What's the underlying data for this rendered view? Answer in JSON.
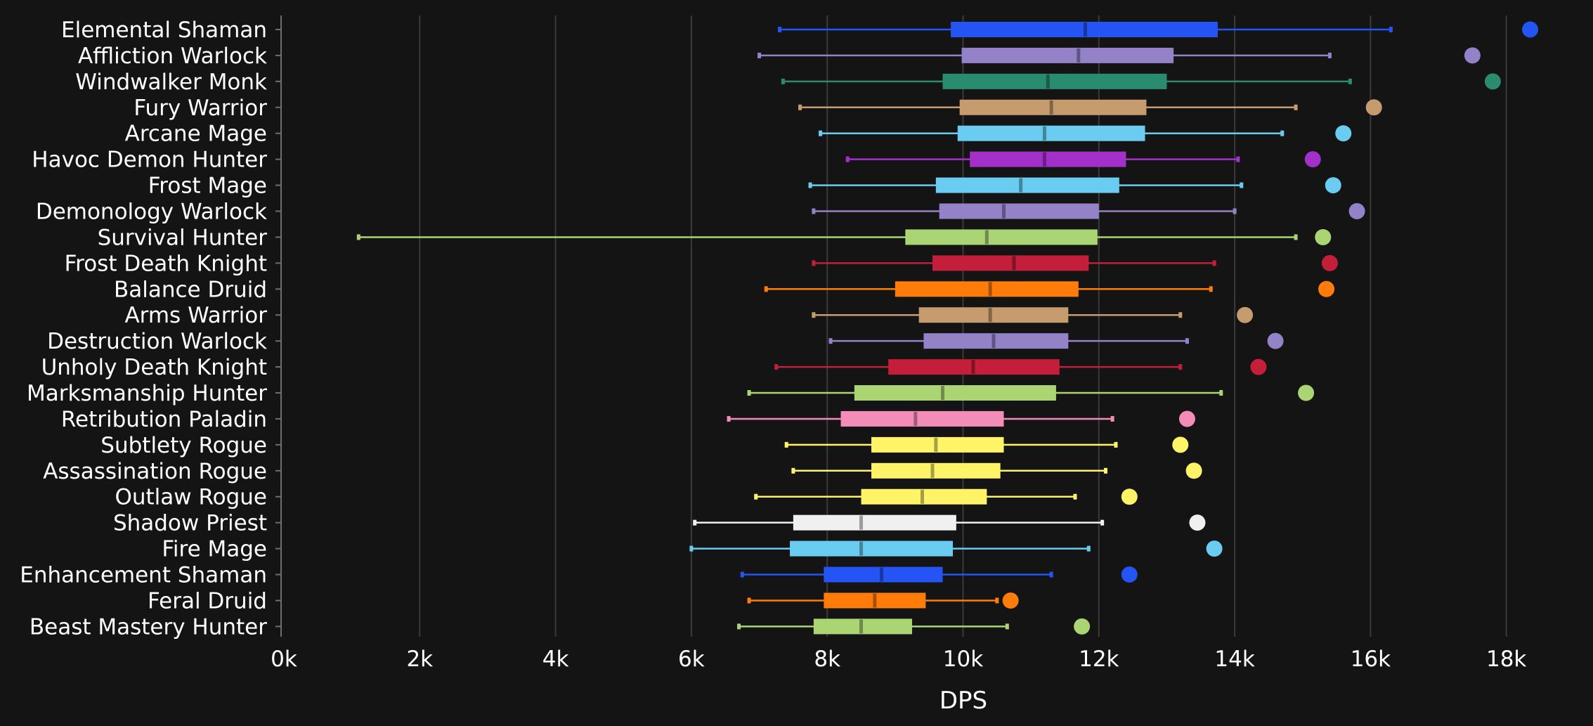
{
  "chart_data": {
    "type": "boxplot",
    "title": "",
    "xlabel": "DPS",
    "ylabel": "",
    "xlim": [
      0,
      18500
    ],
    "x_ticks": [
      0,
      2000,
      4000,
      6000,
      8000,
      10000,
      12000,
      14000,
      16000,
      18000
    ],
    "x_tick_labels": [
      "0k",
      "2k",
      "4k",
      "6k",
      "8k",
      "10k",
      "12k",
      "14k",
      "16k",
      "18k"
    ],
    "grid": "vertical",
    "series": [
      {
        "name": "Elemental Shaman",
        "color": "#2554f5",
        "min": 7300,
        "q1": 9820,
        "median": 11800,
        "q3": 13750,
        "max": 16300,
        "max_point": 18350
      },
      {
        "name": "Affliction Warlock",
        "color": "#9482c9",
        "min": 7000,
        "q1": 9980,
        "median": 11700,
        "q3": 13100,
        "max": 15400,
        "max_point": 17500
      },
      {
        "name": "Windwalker Monk",
        "color": "#2a8c6e",
        "min": 7350,
        "q1": 9700,
        "median": 11250,
        "q3": 13000,
        "max": 15700,
        "max_point": 17800
      },
      {
        "name": "Fury Warrior",
        "color": "#c69b6d",
        "min": 7600,
        "q1": 9950,
        "median": 11300,
        "q3": 12700,
        "max": 14900,
        "max_point": 16050
      },
      {
        "name": "Arcane Mage",
        "color": "#69ccf0",
        "min": 7900,
        "q1": 9920,
        "median": 11200,
        "q3": 12680,
        "max": 14700,
        "max_point": 15600
      },
      {
        "name": "Havoc Demon Hunter",
        "color": "#a330c9",
        "min": 8300,
        "q1": 10100,
        "median": 11200,
        "q3": 12400,
        "max": 14050,
        "max_point": 15150
      },
      {
        "name": "Frost Mage",
        "color": "#69ccf0",
        "min": 7750,
        "q1": 9600,
        "median": 10850,
        "q3": 12300,
        "max": 14100,
        "max_point": 15450
      },
      {
        "name": "Demonology Warlock",
        "color": "#9482c9",
        "min": 7800,
        "q1": 9650,
        "median": 10600,
        "q3": 12000,
        "max": 14000,
        "max_point": 15800
      },
      {
        "name": "Survival Hunter",
        "color": "#abd473",
        "min": 1100,
        "q1": 9150,
        "median": 10350,
        "q3": 11980,
        "max": 14900,
        "max_point": 15300
      },
      {
        "name": "Frost Death Knight",
        "color": "#c41e3a",
        "min": 7800,
        "q1": 9550,
        "median": 10750,
        "q3": 11850,
        "max": 13700,
        "max_point": 15400
      },
      {
        "name": "Balance Druid",
        "color": "#ff7c0a",
        "min": 7100,
        "q1": 9000,
        "median": 10400,
        "q3": 11700,
        "max": 13650,
        "max_point": 15350
      },
      {
        "name": "Arms Warrior",
        "color": "#c69b6d",
        "min": 7800,
        "q1": 9350,
        "median": 10400,
        "q3": 11550,
        "max": 13200,
        "max_point": 14150
      },
      {
        "name": "Destruction Warlock",
        "color": "#9482c9",
        "min": 8050,
        "q1": 9420,
        "median": 10450,
        "q3": 11550,
        "max": 13300,
        "max_point": 14600
      },
      {
        "name": "Unholy Death Knight",
        "color": "#c41e3a",
        "min": 7250,
        "q1": 8900,
        "median": 10150,
        "q3": 11420,
        "max": 13200,
        "max_point": 14350
      },
      {
        "name": "Marksmanship Hunter",
        "color": "#abd473",
        "min": 6850,
        "q1": 8400,
        "median": 9700,
        "q3": 11370,
        "max": 13800,
        "max_point": 15050
      },
      {
        "name": "Retribution Paladin",
        "color": "#f48cba",
        "min": 6550,
        "q1": 8200,
        "median": 9300,
        "q3": 10600,
        "max": 12200,
        "max_point": 13300
      },
      {
        "name": "Subtlety Rogue",
        "color": "#fff468",
        "min": 7400,
        "q1": 8650,
        "median": 9600,
        "q3": 10600,
        "max": 12250,
        "max_point": 13200
      },
      {
        "name": "Assassination Rogue",
        "color": "#fff468",
        "min": 7500,
        "q1": 8650,
        "median": 9550,
        "q3": 10550,
        "max": 12100,
        "max_point": 13400
      },
      {
        "name": "Outlaw Rogue",
        "color": "#fff468",
        "min": 6950,
        "q1": 8500,
        "median": 9400,
        "q3": 10350,
        "max": 11650,
        "max_point": 12450
      },
      {
        "name": "Shadow Priest",
        "color": "#f0f0f0",
        "min": 6050,
        "q1": 7500,
        "median": 8500,
        "q3": 9900,
        "max": 12050,
        "max_point": 13450
      },
      {
        "name": "Fire Mage",
        "color": "#69ccf0",
        "min": 6000,
        "q1": 7450,
        "median": 8500,
        "q3": 9850,
        "max": 11850,
        "max_point": 13700
      },
      {
        "name": "Enhancement Shaman",
        "color": "#2554f5",
        "min": 6750,
        "q1": 7950,
        "median": 8800,
        "q3": 9700,
        "max": 11300,
        "max_point": 12450
      },
      {
        "name": "Feral Druid",
        "color": "#ff7c0a",
        "min": 6850,
        "q1": 7950,
        "median": 8700,
        "q3": 9450,
        "max": 10500,
        "max_point": 10700
      },
      {
        "name": "Beast Mastery Hunter",
        "color": "#abd473",
        "min": 6700,
        "q1": 7800,
        "median": 8500,
        "q3": 9250,
        "max": 10650,
        "max_point": 11750
      }
    ]
  }
}
